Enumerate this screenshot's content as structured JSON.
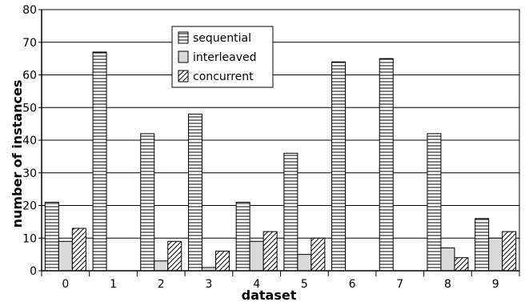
{
  "chart_data": {
    "type": "bar",
    "title": "",
    "xlabel": "dataset",
    "ylabel": "number of instances",
    "categories": [
      "0",
      "1",
      "2",
      "3",
      "4",
      "5",
      "6",
      "7",
      "8",
      "9"
    ],
    "series": [
      {
        "name": "sequential",
        "values": [
          21,
          67,
          42,
          48,
          21,
          36,
          64,
          65,
          42,
          16
        ],
        "pattern": "horizontal-lines"
      },
      {
        "name": "interleaved",
        "values": [
          9,
          0,
          3,
          1,
          9,
          5,
          0,
          0,
          7,
          10
        ],
        "pattern": "solid-light-gray"
      },
      {
        "name": "concurrent",
        "values": [
          13,
          0,
          9,
          6,
          12,
          10,
          0,
          0,
          4,
          12
        ],
        "pattern": "diagonal-hatch"
      }
    ],
    "ylim": [
      0,
      80
    ],
    "yticks": [
      0,
      10,
      20,
      30,
      40,
      50,
      60,
      70,
      80
    ],
    "grid": "horizontal",
    "legend_position": "top-center",
    "colors": {
      "interleaved_fill": "#d9d9d9",
      "stroke": "#000000",
      "grid": "#000000"
    }
  }
}
